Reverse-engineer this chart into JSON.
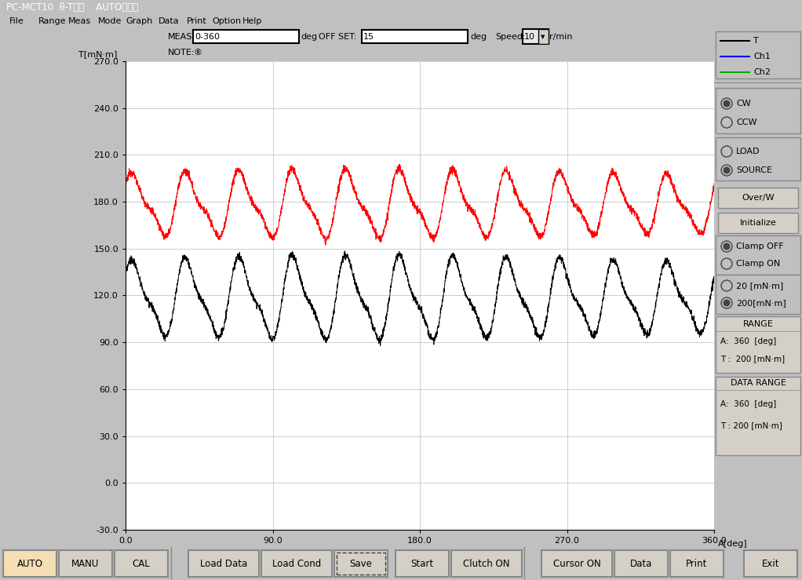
{
  "title_bar": "PC-MCT10  θ-T特性    AUTOモード",
  "menu_items": [
    "File",
    "Range",
    "Meas",
    "Mode",
    "Graph",
    "Data",
    "Print",
    "Option",
    "Help"
  ],
  "menu_x": [
    0.012,
    0.048,
    0.085,
    0.122,
    0.157,
    0.198,
    0.233,
    0.265,
    0.302
  ],
  "meas_label": "MEAS:",
  "meas_value": "0-360",
  "meas_unit": "deg",
  "offset_label": "OFF SET:",
  "offset_value": "15",
  "offset_unit": "deg",
  "speed_label": "Speed:",
  "speed_value": "10",
  "speed_unit": "r/min",
  "note_label": "NOTE:",
  "ylabel": "T[mN·m]",
  "xlabel": "A[deg]",
  "xlim": [
    0.0,
    360.0
  ],
  "ylim": [
    -30.0,
    270.0
  ],
  "yticks": [
    -30.0,
    0.0,
    30.0,
    60.0,
    90.0,
    120.0,
    150.0,
    180.0,
    210.0,
    240.0,
    270.0
  ],
  "xticks": [
    0.0,
    90.0,
    180.0,
    270.0,
    360.0
  ],
  "plot_bg": "#ffffff",
  "app_bg": "#c0c0c0",
  "title_bg": "#7ba7d0",
  "red_line_base": 178,
  "black_line_base": 118,
  "legend_T": "T",
  "legend_Ch1": "Ch1",
  "legend_Ch2": "Ch2",
  "legend_T_color": "#000000",
  "legend_Ch1_color": "#0000ff",
  "legend_Ch2_color": "#00aa00",
  "bottom_buttons": [
    "AUTO",
    "MANU",
    "CAL",
    "Load Data",
    "Load Cond",
    "Save",
    "Start",
    "Clutch ON",
    "Cursor ON",
    "Data",
    "Print",
    "Exit"
  ]
}
